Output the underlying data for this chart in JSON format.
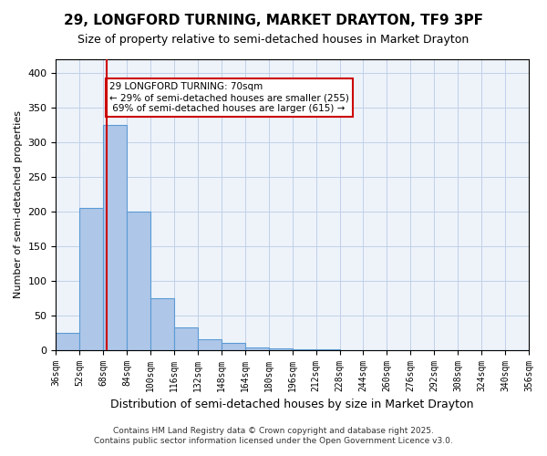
{
  "title1": "29, LONGFORD TURNING, MARKET DRAYTON, TF9 3PF",
  "title2": "Size of property relative to semi-detached houses in Market Drayton",
  "xlabel": "Distribution of semi-detached houses by size in Market Drayton",
  "ylabel": "Number of semi-detached properties",
  "bar_values": [
    25,
    205,
    325,
    200,
    75,
    32,
    15,
    10,
    3,
    2,
    1,
    1,
    0,
    0,
    0,
    0,
    0,
    0,
    0,
    0
  ],
  "bin_edges": [
    36,
    52,
    68,
    84,
    100,
    116,
    132,
    148,
    164,
    180,
    196,
    212,
    228,
    244,
    260,
    276,
    292,
    308,
    324,
    340,
    356
  ],
  "x_tick_labels": [
    "36sqm",
    "52sqm",
    "68sqm",
    "84sqm",
    "100sqm",
    "116sqm",
    "132sqm",
    "148sqm",
    "164sqm",
    "180sqm",
    "196sqm",
    "212sqm",
    "228sqm",
    "244sqm",
    "260sqm",
    "276sqm",
    "292sqm",
    "308sqm",
    "324sqm",
    "340sqm",
    "356sqm"
  ],
  "property_size": 70,
  "property_label": "29 LONGFORD TURNING: 70sqm",
  "smaller_pct": 29,
  "smaller_count": 255,
  "larger_pct": 69,
  "larger_count": 615,
  "bar_color": "#aec6e8",
  "bar_edge_color": "#5b9bd5",
  "highlight_line_color": "#cc0000",
  "annotation_box_edge_color": "#cc0000",
  "ylim": [
    0,
    420
  ],
  "yticks": [
    0,
    50,
    100,
    150,
    200,
    250,
    300,
    350,
    400
  ],
  "grid_color": "#c0d0e8",
  "background_color": "#eef3fa",
  "footer_line1": "Contains HM Land Registry data © Crown copyright and database right 2025.",
  "footer_line2": "Contains public sector information licensed under the Open Government Licence v3.0."
}
